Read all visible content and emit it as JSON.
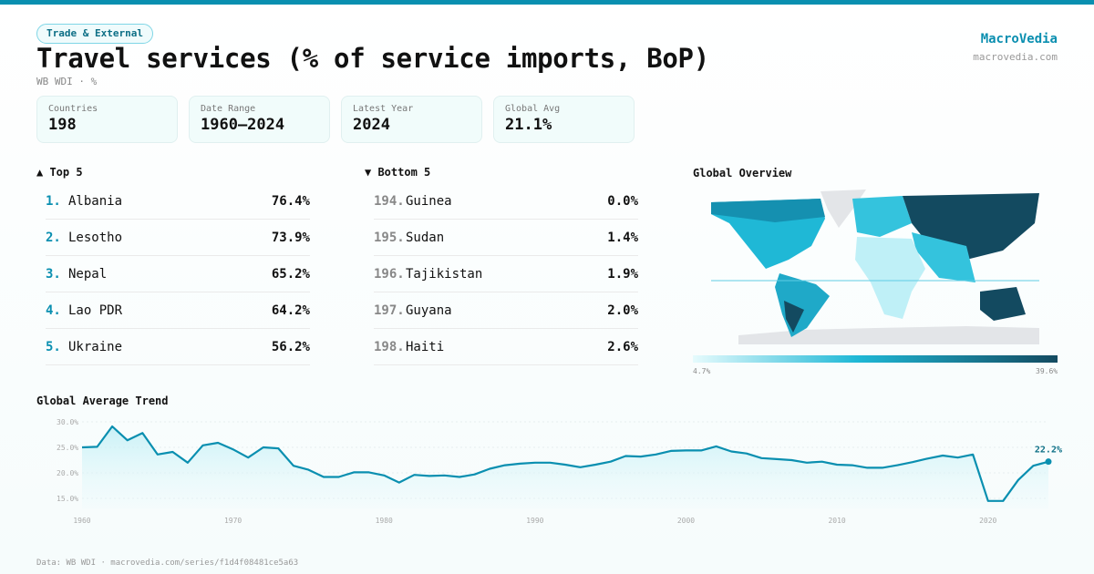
{
  "header": {
    "category": "Trade & External",
    "title": "Travel services (% of service imports, BoP)",
    "subtitle": "WB WDI · %",
    "brand": "MacroVedia",
    "brand_url": "macrovedia.com"
  },
  "stats": [
    {
      "label": "Countries",
      "value": "198"
    },
    {
      "label": "Date Range",
      "value": "1960–2024"
    },
    {
      "label": "Latest Year",
      "value": "2024"
    },
    {
      "label": "Global Avg",
      "value": "21.1%"
    }
  ],
  "top5": {
    "title": "▲ Top 5",
    "items": [
      {
        "rank": "1.",
        "name": "Albania",
        "value": "76.4%"
      },
      {
        "rank": "2.",
        "name": "Lesotho",
        "value": "73.9%"
      },
      {
        "rank": "3.",
        "name": "Nepal",
        "value": "65.2%"
      },
      {
        "rank": "4.",
        "name": "Lao PDR",
        "value": "64.2%"
      },
      {
        "rank": "5.",
        "name": "Ukraine",
        "value": "56.2%"
      }
    ]
  },
  "bottom5": {
    "title": "▼ Bottom 5",
    "items": [
      {
        "rank": "194.",
        "name": "Guinea",
        "value": "0.0%"
      },
      {
        "rank": "195.",
        "name": "Sudan",
        "value": "1.4%"
      },
      {
        "rank": "196.",
        "name": "Tajikistan",
        "value": "1.9%"
      },
      {
        "rank": "197.",
        "name": "Guyana",
        "value": "2.0%"
      },
      {
        "rank": "198.",
        "name": "Haiti",
        "value": "2.6%"
      }
    ]
  },
  "map": {
    "title": "Global Overview",
    "legend_min": "4.7%",
    "legend_max": "39.6%",
    "colors": [
      "#e6fbfd",
      "#1fb8d6",
      "#134a60"
    ]
  },
  "footer": "Data: WB WDI · macrovedia.com/series/f1d4f08481ce5a63",
  "chart_data": {
    "type": "area",
    "title": "Global Average Trend",
    "color": "#0a8fb0",
    "x": [
      1960,
      1961,
      1962,
      1963,
      1964,
      1965,
      1966,
      1967,
      1968,
      1969,
      1970,
      1971,
      1972,
      1973,
      1974,
      1975,
      1976,
      1977,
      1978,
      1979,
      1980,
      1981,
      1982,
      1983,
      1984,
      1985,
      1986,
      1987,
      1988,
      1989,
      1990,
      1991,
      1992,
      1993,
      1994,
      1995,
      1996,
      1997,
      1998,
      1999,
      2000,
      2001,
      2002,
      2003,
      2004,
      2005,
      2006,
      2007,
      2008,
      2009,
      2010,
      2011,
      2012,
      2013,
      2014,
      2015,
      2016,
      2017,
      2018,
      2019,
      2020,
      2021,
      2022,
      2023,
      2024
    ],
    "y": [
      25.0,
      25.1,
      29.1,
      26.4,
      27.8,
      23.6,
      24.1,
      22.0,
      25.4,
      25.9,
      24.6,
      23.0,
      25.0,
      24.8,
      21.4,
      20.6,
      19.2,
      19.2,
      20.1,
      20.1,
      19.5,
      18.1,
      19.6,
      19.4,
      19.5,
      19.2,
      19.7,
      20.8,
      21.5,
      21.8,
      22.0,
      22.0,
      21.6,
      21.1,
      21.6,
      22.2,
      23.3,
      23.2,
      23.6,
      24.3,
      24.4,
      24.4,
      25.2,
      24.2,
      23.8,
      22.9,
      22.7,
      22.5,
      22.0,
      22.2,
      21.6,
      21.5,
      21.0,
      21.0,
      21.5,
      22.1,
      22.8,
      23.4,
      23.0,
      23.6,
      14.5,
      14.5,
      18.6,
      21.4,
      22.2
    ],
    "yticks": [
      "15.0%",
      "20.0%",
      "25.0%",
      "30.0%"
    ],
    "xticks": [
      "1960",
      "1970",
      "1980",
      "1990",
      "2000",
      "2010",
      "2020"
    ],
    "ylim": [
      13,
      30
    ],
    "last_label": "22.2%",
    "grid": true
  }
}
